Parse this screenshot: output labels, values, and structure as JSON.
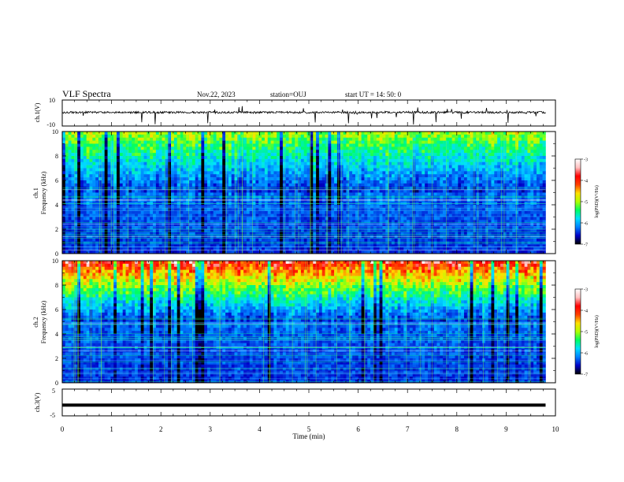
{
  "header": {
    "title": "VLF Spectra",
    "date": "Nov.22, 2023",
    "station": "station=OUJ",
    "start_time": "start  UT =   14: 50: 0"
  },
  "chart_data": [
    {
      "type": "line",
      "id": "ch1-waveform",
      "ylabel": "ch.1(V)",
      "ylim": [
        -10,
        10
      ],
      "yticks": [
        "10",
        "-10"
      ],
      "xlim": [
        0,
        10
      ],
      "trace_baseline": 0.5,
      "color": "#000000"
    },
    {
      "type": "heatmap",
      "id": "ch1-spectrogram",
      "ylabel": [
        "ch.1",
        "Frequency  (kHz)"
      ],
      "ylim": [
        0,
        10
      ],
      "yticks": [
        "0",
        "2",
        "4",
        "6",
        "8",
        "10"
      ],
      "xlim": [
        0,
        9.8
      ],
      "colorbar": {
        "label": "log(PSD)(V²/Hz)",
        "range": [
          -7,
          -3
        ],
        "ticks": [
          "-3",
          "-4",
          "-5",
          "-6",
          "-7"
        ],
        "colors": [
          "#000000",
          "#0000c8",
          "#0080ff",
          "#00e0ff",
          "#00ff60",
          "#b0ff00",
          "#ffe000",
          "#ff4000",
          "#ff0000",
          "#ffc0c0",
          "#ffffff"
        ]
      }
    },
    {
      "type": "heatmap",
      "id": "ch2-spectrogram",
      "ylabel": [
        "ch.2",
        "Frequency  (kHz)"
      ],
      "ylim": [
        0,
        10
      ],
      "yticks": [
        "0",
        "2",
        "4",
        "6",
        "8",
        "10"
      ],
      "xlim": [
        0,
        9.8
      ],
      "colorbar": {
        "label": "log(PSD)(V²/Hz)",
        "range": [
          -7,
          -3
        ],
        "ticks": [
          "-3",
          "-4",
          "-5",
          "-6",
          "-7"
        ],
        "colors": [
          "#000000",
          "#0000c8",
          "#0080ff",
          "#00e0ff",
          "#00ff60",
          "#b0ff00",
          "#ffe000",
          "#ff4000",
          "#ff0000",
          "#ffc0c0",
          "#ffffff"
        ]
      }
    },
    {
      "type": "line",
      "id": "ch3-waveform",
      "ylabel": "ch.3(V)",
      "ylim": [
        -5,
        5
      ],
      "yticks": [
        "5",
        "-5"
      ],
      "xlim": [
        0,
        10
      ],
      "trace_value": -1,
      "color": "#000000"
    }
  ],
  "x_axis": {
    "label": "Time  (min)",
    "range": [
      0,
      10
    ],
    "ticks": [
      "0",
      "1",
      "2",
      "3",
      "4",
      "5",
      "6",
      "7",
      "8",
      "9",
      "10"
    ]
  }
}
